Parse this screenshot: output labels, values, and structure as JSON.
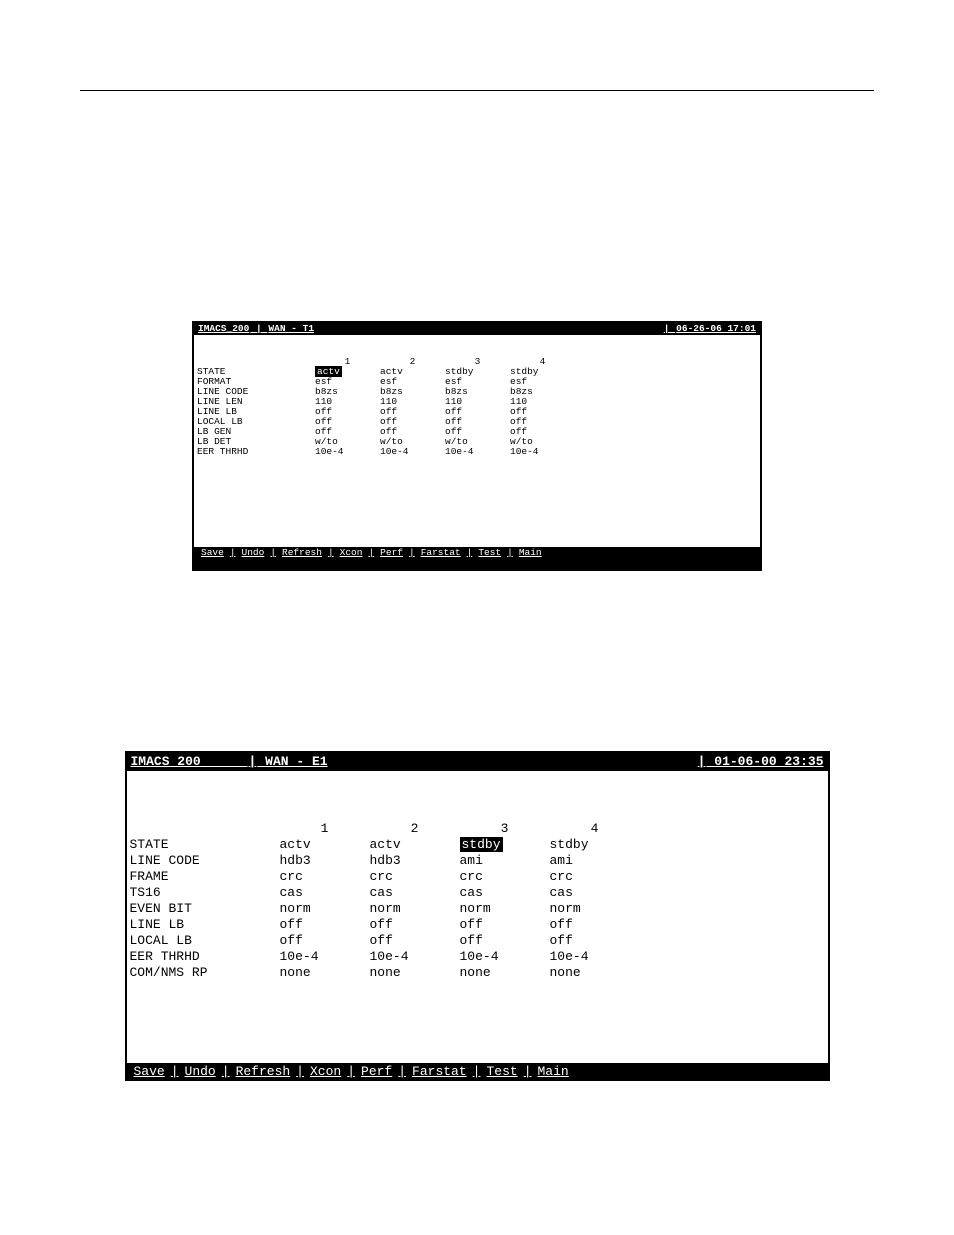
{
  "screen1": {
    "device": "IMACS_200",
    "mode": "WAN - T1",
    "datetime": "06-26-06 17:01",
    "params": [
      "STATE",
      "FORMAT",
      "LINE CODE",
      "LINE LEN",
      "LINE LB",
      "LOCAL LB",
      "LB GEN",
      "LB DET",
      "EER THRHD"
    ],
    "headers": [
      "1",
      "2",
      "3",
      "4"
    ],
    "cols": [
      [
        "actv",
        "esf",
        "b8zs",
        "110",
        "off",
        "off",
        "off",
        "w/to",
        "10e-4"
      ],
      [
        "actv",
        "esf",
        "b8zs",
        "110",
        "off",
        "off",
        "off",
        "w/to",
        "10e-4"
      ],
      [
        "stdby",
        "esf",
        "b8zs",
        "110",
        "off",
        "off",
        "off",
        "w/to",
        "10e-4"
      ],
      [
        "stdby",
        "esf",
        "b8zs",
        "110",
        "off",
        "off",
        "off",
        "w/to",
        "10e-4"
      ]
    ],
    "highlight": {
      "col": 0,
      "row": 0
    },
    "menu": [
      "Save",
      "Undo",
      "Refresh",
      "Xcon",
      "Perf",
      "Farstat",
      "Test",
      "Main"
    ]
  },
  "screen2": {
    "device": "IMACS 200",
    "mode": "WAN - E1",
    "datetime": "01-06-00 23:35",
    "params": [
      "STATE",
      "LINE CODE",
      "FRAME",
      "TS16",
      "EVEN BIT",
      "LINE LB",
      "LOCAL LB",
      "EER THRHD",
      "COM/NMS RP"
    ],
    "headers": [
      "1",
      "2",
      "3",
      "4"
    ],
    "cols": [
      [
        "actv",
        "hdb3",
        "crc",
        "cas",
        "norm",
        "off",
        "off",
        "10e-4",
        "none"
      ],
      [
        "actv",
        "hdb3",
        "crc",
        "cas",
        "norm",
        "off",
        "off",
        "10e-4",
        "none"
      ],
      [
        "stdby",
        "ami",
        "crc",
        "cas",
        "norm",
        "off",
        "off",
        "10e-4",
        "none"
      ],
      [
        "stdby",
        "ami",
        "crc",
        "cas",
        "norm",
        "off",
        "off",
        "10e-4",
        "none"
      ]
    ],
    "highlight": {
      "col": 2,
      "row": 0
    },
    "menu": [
      "Save",
      "Undo",
      "Refresh",
      "Xcon",
      "Perf",
      "Farstat",
      "Test",
      "Main"
    ]
  }
}
